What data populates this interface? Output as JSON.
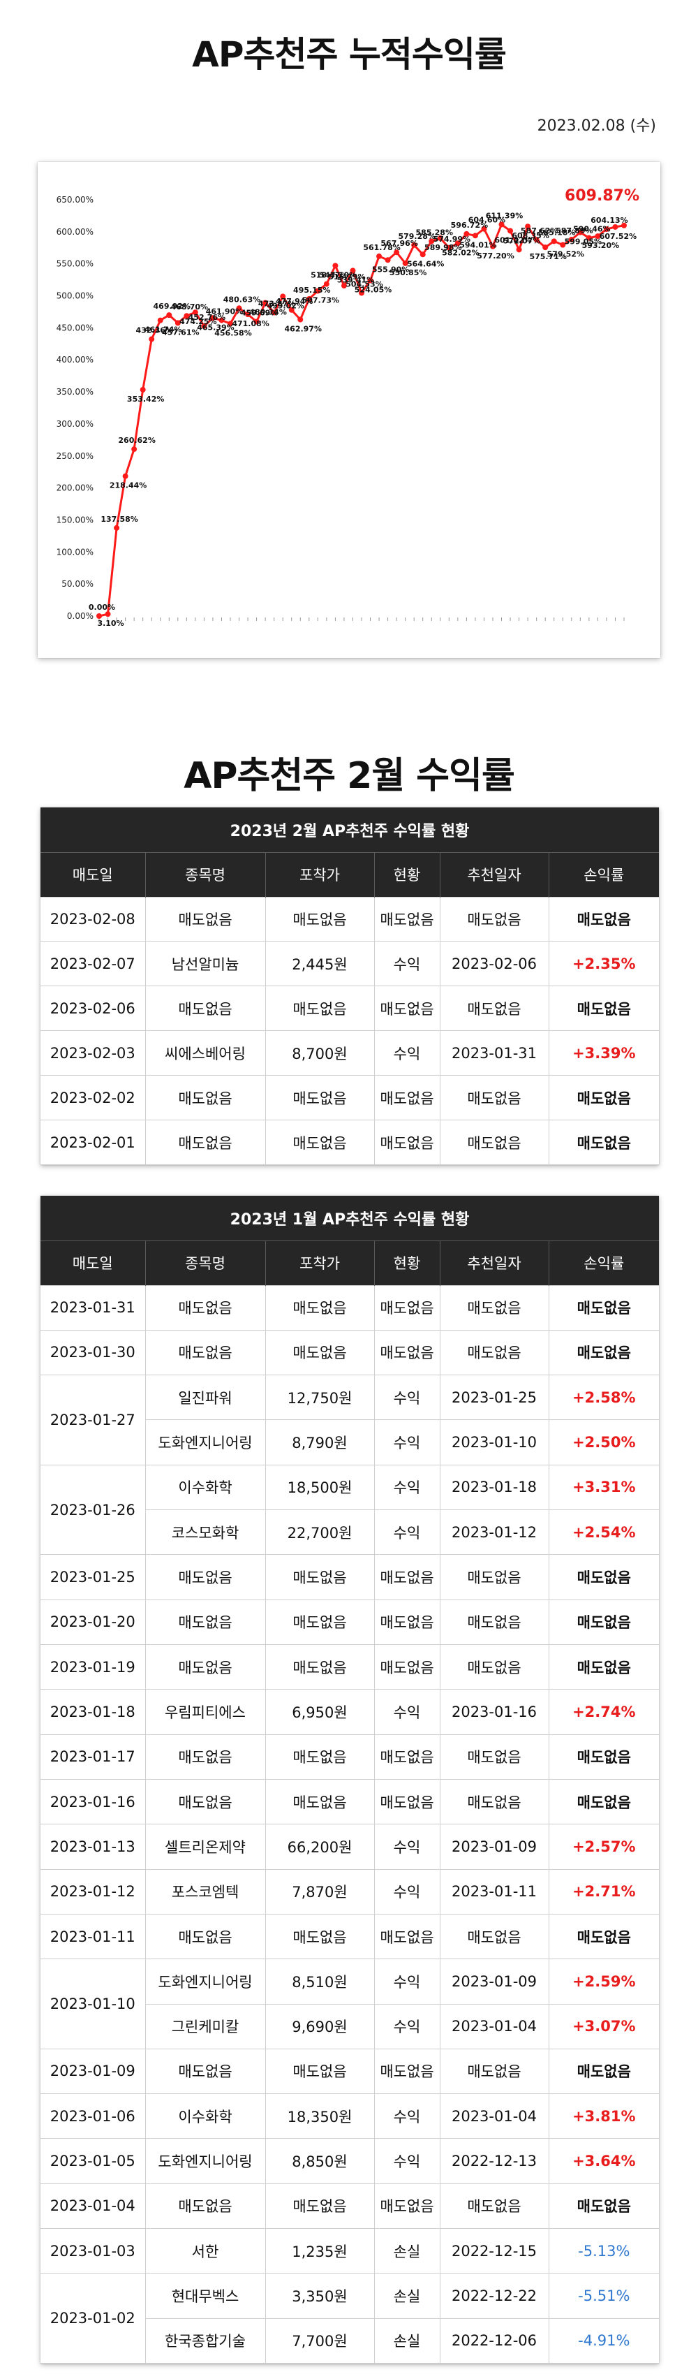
{
  "title": "AP추천주 누적수익률",
  "date": "2023.02.08 (수)",
  "chart_data": {
    "type": "line",
    "ylim": [
      0,
      650
    ],
    "yticks": [
      "0.00%",
      "50.00%",
      "100.00%",
      "150.00%",
      "200.00%",
      "250.00%",
      "300.00%",
      "350.00%",
      "400.00%",
      "450.00%",
      "500.00%",
      "550.00%",
      "600.00%",
      "650.00%"
    ],
    "values": [
      0,
      3.1,
      137.58,
      218.44,
      260.62,
      353.42,
      432.36,
      461.74,
      469.92,
      457.61,
      468.7,
      474.25,
      452.76,
      465.39,
      461.9,
      456.58,
      480.63,
      471.08,
      459.69,
      489.14,
      473.87,
      499.02,
      477.94,
      462.97,
      495.15,
      507.73,
      518.47,
      547.1,
      515.79,
      539.41,
      504.53,
      524.05,
      561.78,
      555.9,
      567.96,
      550.85,
      579.28,
      564.64,
      585.28,
      589.98,
      574.99,
      582.02,
      596.72,
      594.01,
      604.6,
      577.2,
      611.39,
      601.42,
      572.07,
      608.35,
      587.62,
      575.71,
      585.18,
      579.52,
      587.89,
      599.05,
      590.46,
      593.2,
      604.13,
      607.52,
      609.87
    ],
    "labels": [
      "0.00%",
      "3.10%",
      "137.58%",
      "218.44%",
      "260.62%",
      "353.42%",
      "432.36%",
      "461.74%",
      "469.92%",
      "457.61%",
      "468.70%",
      "474.25%",
      "452.76%",
      "465.39%",
      "461.90%",
      "456.58%",
      "480.63%",
      "471.08%",
      "459.69%",
      "489.14%",
      "473.87%",
      "499.02%",
      "477.94%",
      "462.97%",
      "495.15%",
      "507.73%",
      "518.47%",
      "547.10%",
      "515.79%",
      "539.41%",
      "504.53%",
      "524.05%",
      "561.78%",
      "555.90%",
      "567.96%",
      "550.85%",
      "579.28%",
      "564.64%",
      "585.28%",
      "589.98%",
      "574.99%",
      "582.02%",
      "596.72%",
      "594.01%",
      "604.60%",
      "577.20%",
      "611.39%",
      "601.42%",
      "572.07%",
      "608.35%",
      "587.62%",
      "575.71%",
      "585.18%",
      "579.52%",
      "587.89%",
      "599.05%",
      "590.46%",
      "593.20%",
      "604.13%",
      "607.52%",
      "609.87%"
    ],
    "final_label": "609.87%",
    "line_color": "#ff1a1a",
    "highlight_color": "#e81c1c"
  },
  "section2_title": "AP추천주 2월 수익률",
  "columns": [
    "매도일",
    "종목명",
    "포착가",
    "현황",
    "추천일자",
    "손익률"
  ],
  "feb": {
    "caption": "2023년 2월 AP추천주 수익률 현황",
    "rows": [
      {
        "date": "2023-02-08",
        "items": [
          {
            "stock": "매도없음",
            "price": "매도없음",
            "status": "매도없음",
            "rec": "매도없음",
            "pl": "매도없음",
            "kind": "none"
          }
        ]
      },
      {
        "date": "2023-02-07",
        "items": [
          {
            "stock": "남선알미늄",
            "price": "2,445원",
            "status": "수익",
            "rec": "2023-02-06",
            "pl": "+2.35%",
            "kind": "gain"
          }
        ]
      },
      {
        "date": "2023-02-06",
        "items": [
          {
            "stock": "매도없음",
            "price": "매도없음",
            "status": "매도없음",
            "rec": "매도없음",
            "pl": "매도없음",
            "kind": "none"
          }
        ]
      },
      {
        "date": "2023-02-03",
        "items": [
          {
            "stock": "씨에스베어링",
            "price": "8,700원",
            "status": "수익",
            "rec": "2023-01-31",
            "pl": "+3.39%",
            "kind": "gain"
          }
        ]
      },
      {
        "date": "2023-02-02",
        "items": [
          {
            "stock": "매도없음",
            "price": "매도없음",
            "status": "매도없음",
            "rec": "매도없음",
            "pl": "매도없음",
            "kind": "none"
          }
        ]
      },
      {
        "date": "2023-02-01",
        "items": [
          {
            "stock": "매도없음",
            "price": "매도없음",
            "status": "매도없음",
            "rec": "매도없음",
            "pl": "매도없음",
            "kind": "none"
          }
        ]
      }
    ]
  },
  "jan": {
    "caption": "2023년 1월 AP추천주 수익률 현황",
    "rows": [
      {
        "date": "2023-01-31",
        "items": [
          {
            "stock": "매도없음",
            "price": "매도없음",
            "status": "매도없음",
            "rec": "매도없음",
            "pl": "매도없음",
            "kind": "none"
          }
        ]
      },
      {
        "date": "2023-01-30",
        "items": [
          {
            "stock": "매도없음",
            "price": "매도없음",
            "status": "매도없음",
            "rec": "매도없음",
            "pl": "매도없음",
            "kind": "none"
          }
        ]
      },
      {
        "date": "2023-01-27",
        "items": [
          {
            "stock": "일진파워",
            "price": "12,750원",
            "status": "수익",
            "rec": "2023-01-25",
            "pl": "+2.58%",
            "kind": "gain"
          },
          {
            "stock": "도화엔지니어링",
            "price": "8,790원",
            "status": "수익",
            "rec": "2023-01-10",
            "pl": "+2.50%",
            "kind": "gain"
          }
        ]
      },
      {
        "date": "2023-01-26",
        "items": [
          {
            "stock": "이수화학",
            "price": "18,500원",
            "status": "수익",
            "rec": "2023-01-18",
            "pl": "+3.31%",
            "kind": "gain"
          },
          {
            "stock": "코스모화학",
            "price": "22,700원",
            "status": "수익",
            "rec": "2023-01-12",
            "pl": "+2.54%",
            "kind": "gain"
          }
        ]
      },
      {
        "date": "2023-01-25",
        "items": [
          {
            "stock": "매도없음",
            "price": "매도없음",
            "status": "매도없음",
            "rec": "매도없음",
            "pl": "매도없음",
            "kind": "none"
          }
        ]
      },
      {
        "date": "2023-01-20",
        "items": [
          {
            "stock": "매도없음",
            "price": "매도없음",
            "status": "매도없음",
            "rec": "매도없음",
            "pl": "매도없음",
            "kind": "none"
          }
        ]
      },
      {
        "date": "2023-01-19",
        "items": [
          {
            "stock": "매도없음",
            "price": "매도없음",
            "status": "매도없음",
            "rec": "매도없음",
            "pl": "매도없음",
            "kind": "none"
          }
        ]
      },
      {
        "date": "2023-01-18",
        "items": [
          {
            "stock": "우림피티에스",
            "price": "6,950원",
            "status": "수익",
            "rec": "2023-01-16",
            "pl": "+2.74%",
            "kind": "gain"
          }
        ]
      },
      {
        "date": "2023-01-17",
        "items": [
          {
            "stock": "매도없음",
            "price": "매도없음",
            "status": "매도없음",
            "rec": "매도없음",
            "pl": "매도없음",
            "kind": "none"
          }
        ]
      },
      {
        "date": "2023-01-16",
        "items": [
          {
            "stock": "매도없음",
            "price": "매도없음",
            "status": "매도없음",
            "rec": "매도없음",
            "pl": "매도없음",
            "kind": "none"
          }
        ]
      },
      {
        "date": "2023-01-13",
        "items": [
          {
            "stock": "셀트리온제약",
            "price": "66,200원",
            "status": "수익",
            "rec": "2023-01-09",
            "pl": "+2.57%",
            "kind": "gain"
          }
        ]
      },
      {
        "date": "2023-01-12",
        "items": [
          {
            "stock": "포스코엠텍",
            "price": "7,870원",
            "status": "수익",
            "rec": "2023-01-11",
            "pl": "+2.71%",
            "kind": "gain"
          }
        ]
      },
      {
        "date": "2023-01-11",
        "items": [
          {
            "stock": "매도없음",
            "price": "매도없음",
            "status": "매도없음",
            "rec": "매도없음",
            "pl": "매도없음",
            "kind": "none"
          }
        ]
      },
      {
        "date": "2023-01-10",
        "items": [
          {
            "stock": "도화엔지니어링",
            "price": "8,510원",
            "status": "수익",
            "rec": "2023-01-09",
            "pl": "+2.59%",
            "kind": "gain"
          },
          {
            "stock": "그린케미칼",
            "price": "9,690원",
            "status": "수익",
            "rec": "2023-01-04",
            "pl": "+3.07%",
            "kind": "gain"
          }
        ]
      },
      {
        "date": "2023-01-09",
        "items": [
          {
            "stock": "매도없음",
            "price": "매도없음",
            "status": "매도없음",
            "rec": "매도없음",
            "pl": "매도없음",
            "kind": "none"
          }
        ]
      },
      {
        "date": "2023-01-06",
        "items": [
          {
            "stock": "이수화학",
            "price": "18,350원",
            "status": "수익",
            "rec": "2023-01-04",
            "pl": "+3.81%",
            "kind": "gain"
          }
        ]
      },
      {
        "date": "2023-01-05",
        "items": [
          {
            "stock": "도화엔지니어링",
            "price": "8,850원",
            "status": "수익",
            "rec": "2022-12-13",
            "pl": "+3.64%",
            "kind": "gain"
          }
        ]
      },
      {
        "date": "2023-01-04",
        "items": [
          {
            "stock": "매도없음",
            "price": "매도없음",
            "status": "매도없음",
            "rec": "매도없음",
            "pl": "매도없음",
            "kind": "none"
          }
        ]
      },
      {
        "date": "2023-01-03",
        "items": [
          {
            "stock": "서한",
            "price": "1,235원",
            "status": "손실",
            "rec": "2022-12-15",
            "pl": "-5.13%",
            "kind": "loss"
          }
        ]
      },
      {
        "date": "2023-01-02",
        "items": [
          {
            "stock": "현대무벡스",
            "price": "3,350원",
            "status": "손실",
            "rec": "2022-12-22",
            "pl": "-5.51%",
            "kind": "loss"
          },
          {
            "stock": "한국종합기술",
            "price": "7,700원",
            "status": "손실",
            "rec": "2022-12-06",
            "pl": "-4.91%",
            "kind": "loss"
          }
        ]
      }
    ]
  }
}
